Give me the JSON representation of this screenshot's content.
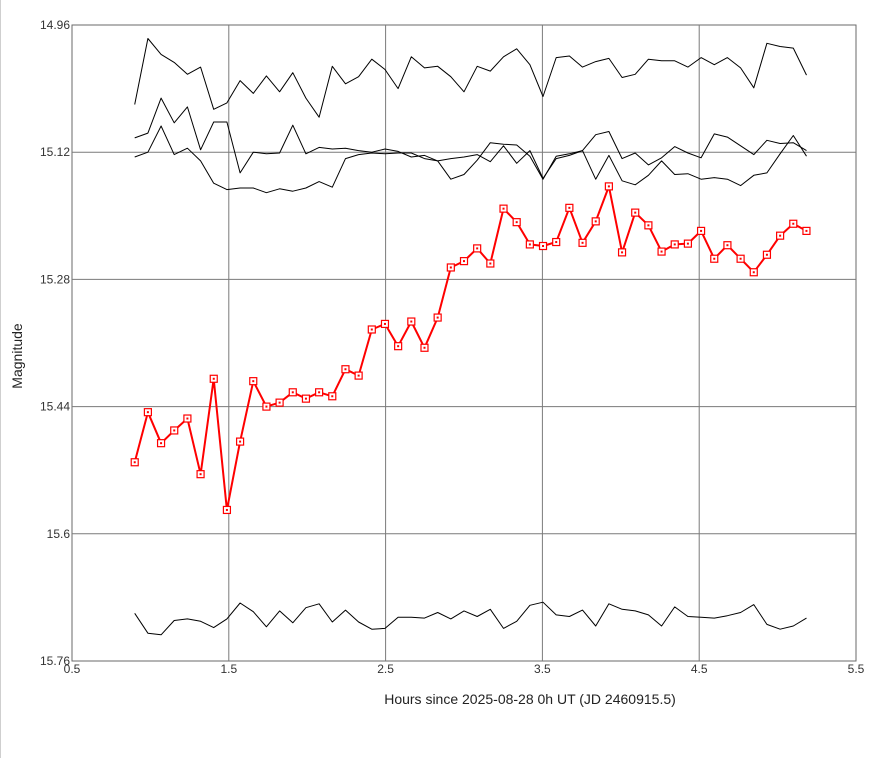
{
  "chart_data": {
    "type": "line",
    "title": "",
    "xlabel": "Hours since 2025-08-28 0h UT (JD 2460915.5)",
    "ylabel": "Magnitude",
    "xlim": [
      0.5,
      5.5
    ],
    "ylim": [
      14.96,
      15.76
    ],
    "y_inverted": true,
    "grid": true,
    "x_ticks": [
      0.5,
      1.5,
      2.5,
      3.5,
      4.5,
      5.5
    ],
    "x_tick_labels": [
      "0.5",
      "1.5",
      "2.5",
      "3.5",
      "4.5",
      "5.5"
    ],
    "y_ticks": [
      14.96,
      15.12,
      15.28,
      15.44,
      15.6,
      15.76
    ],
    "y_tick_labels": [
      "14.96",
      "15.12",
      "15.28",
      "15.44",
      "15.6",
      "15.76"
    ],
    "x": [
      0.9,
      0.984,
      1.068,
      1.152,
      1.236,
      1.32,
      1.404,
      1.488,
      1.572,
      1.656,
      1.74,
      1.824,
      1.908,
      1.992,
      2.076,
      2.16,
      2.244,
      2.328,
      2.412,
      2.496,
      2.58,
      2.664,
      2.748,
      2.832,
      2.916,
      3.0,
      3.084,
      3.168,
      3.252,
      3.336,
      3.42,
      3.504,
      3.588,
      3.672,
      3.756,
      3.84,
      3.924,
      4.008,
      4.092,
      4.176,
      4.26,
      4.344,
      4.428,
      4.512,
      4.596,
      4.68,
      4.764,
      4.848,
      4.932,
      5.016,
      5.1,
      5.184
    ],
    "series": [
      {
        "color": "#ff0000",
        "marker": "square",
        "values": [
          15.51,
          15.447,
          15.486,
          15.47,
          15.455,
          15.525,
          15.405,
          15.57,
          15.484,
          15.408,
          15.44,
          15.435,
          15.422,
          15.43,
          15.422,
          15.427,
          15.393,
          15.401,
          15.343,
          15.336,
          15.364,
          15.333,
          15.366,
          15.328,
          15.265,
          15.257,
          15.241,
          15.26,
          15.191,
          15.208,
          15.236,
          15.238,
          15.233,
          15.19,
          15.234,
          15.207,
          15.163,
          15.246,
          15.196,
          15.212,
          15.245,
          15.236,
          15.235,
          15.219,
          15.254,
          15.237,
          15.254,
          15.271,
          15.249,
          15.225,
          15.21,
          15.219
        ]
      },
      {
        "color": "#000000",
        "marker": "none",
        "values": [
          15.06,
          14.977,
          14.997,
          15.007,
          15.022,
          15.013,
          15.066,
          15.058,
          15.03,
          15.046,
          15.024,
          15.044,
          15.02,
          15.052,
          15.076,
          15.012,
          15.034,
          15.025,
          15.003,
          15.016,
          15.04,
          15.0,
          15.014,
          15.012,
          15.025,
          15.044,
          15.012,
          15.018,
          15.0,
          14.99,
          15.01,
          15.05,
          15.001,
          14.999,
          15.013,
          15.006,
          15.002,
          15.026,
          15.022,
          15.003,
          15.005,
          15.005,
          15.013,
          15.001,
          15.01,
          15.001,
          15.014,
          15.039,
          14.983,
          14.987,
          14.989,
          15.023
        ]
      },
      {
        "color": "#000000",
        "marker": "none",
        "values": [
          15.102,
          15.096,
          15.052,
          15.083,
          15.063,
          15.117,
          15.082,
          15.082,
          15.146,
          15.12,
          15.122,
          15.121,
          15.086,
          15.122,
          15.114,
          15.116,
          15.115,
          15.118,
          15.12,
          15.116,
          15.119,
          15.126,
          15.124,
          15.131,
          15.154,
          15.148,
          15.13,
          15.108,
          15.11,
          15.111,
          15.125,
          15.154,
          15.125,
          15.122,
          15.118,
          15.098,
          15.094,
          15.128,
          15.121,
          15.136,
          15.127,
          15.113,
          15.121,
          15.127,
          15.097,
          15.101,
          15.112,
          15.123,
          15.105,
          15.109,
          15.108,
          15.118
        ]
      },
      {
        "color": "#000000",
        "marker": "none",
        "values": [
          15.126,
          15.12,
          15.087,
          15.123,
          15.115,
          15.131,
          15.159,
          15.167,
          15.165,
          15.165,
          15.171,
          15.166,
          15.169,
          15.165,
          15.157,
          15.164,
          15.128,
          15.123,
          15.121,
          15.122,
          15.121,
          15.121,
          15.128,
          15.131,
          15.128,
          15.126,
          15.123,
          15.132,
          15.112,
          15.134,
          15.118,
          15.153,
          15.128,
          15.124,
          15.118,
          15.154,
          15.124,
          15.156,
          15.161,
          15.149,
          15.131,
          15.148,
          15.147,
          15.154,
          15.152,
          15.154,
          15.162,
          15.149,
          15.146,
          15.122,
          15.099,
          15.125
        ]
      },
      {
        "color": "#000000",
        "marker": "none",
        "values": [
          15.7,
          15.725,
          15.727,
          15.709,
          15.707,
          15.71,
          15.718,
          15.707,
          15.687,
          15.698,
          15.717,
          15.697,
          15.712,
          15.693,
          15.688,
          15.711,
          15.696,
          15.711,
          15.72,
          15.719,
          15.705,
          15.705,
          15.706,
          15.699,
          15.707,
          15.697,
          15.704,
          15.695,
          15.719,
          15.71,
          15.69,
          15.686,
          15.702,
          15.704,
          15.696,
          15.716,
          15.688,
          15.695,
          15.697,
          15.702,
          15.716,
          15.692,
          15.704,
          15.705,
          15.706,
          15.703,
          15.699,
          15.689,
          15.714,
          15.72,
          15.716,
          15.706
        ]
      }
    ]
  }
}
